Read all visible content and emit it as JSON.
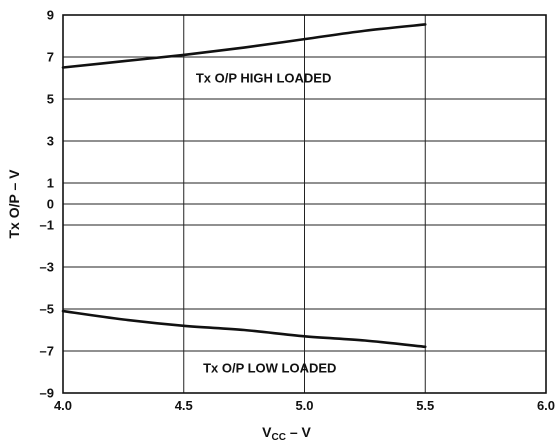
{
  "chart_data": {
    "type": "line",
    "title": "",
    "xlabel": {
      "main": "V",
      "sub": "CC",
      "suffix": " – V"
    },
    "ylabel": "Tx O/P – V",
    "xlim": [
      4.0,
      6.0
    ],
    "ylim": [
      -9,
      9
    ],
    "x_ticks": [
      4.0,
      4.5,
      5.0,
      5.5,
      6.0
    ],
    "x_tick_labels": [
      "4.0",
      "4.5",
      "5.0",
      "5.5",
      "6.0"
    ],
    "y_ticks": [
      9,
      7,
      5,
      3,
      1,
      0,
      -1,
      -3,
      -5,
      -7,
      -9
    ],
    "y_tick_labels": [
      "9",
      "7",
      "5",
      "3",
      "1",
      "0",
      "–1",
      "–3",
      "–5",
      "–7",
      "–9"
    ],
    "grid": true,
    "series": [
      {
        "x": [
          4.0,
          4.25,
          4.5,
          4.75,
          5.0,
          5.25,
          5.5
        ],
        "y": [
          6.5,
          6.8,
          7.1,
          7.45,
          7.85,
          8.25,
          8.55
        ],
        "color": "#111111"
      },
      {
        "x": [
          4.0,
          4.25,
          4.5,
          4.75,
          5.0,
          5.25,
          5.5
        ],
        "y": [
          -5.1,
          -5.5,
          -5.8,
          -6.0,
          -6.3,
          -6.5,
          -6.8
        ],
        "color": "#111111"
      }
    ],
    "annotations": [
      {
        "text": "Tx O/P HIGH LOADED",
        "x": 4.55,
        "y": 6.0
      },
      {
        "text": "Tx O/P LOW LOADED",
        "x": 4.58,
        "y": -7.8
      }
    ]
  }
}
